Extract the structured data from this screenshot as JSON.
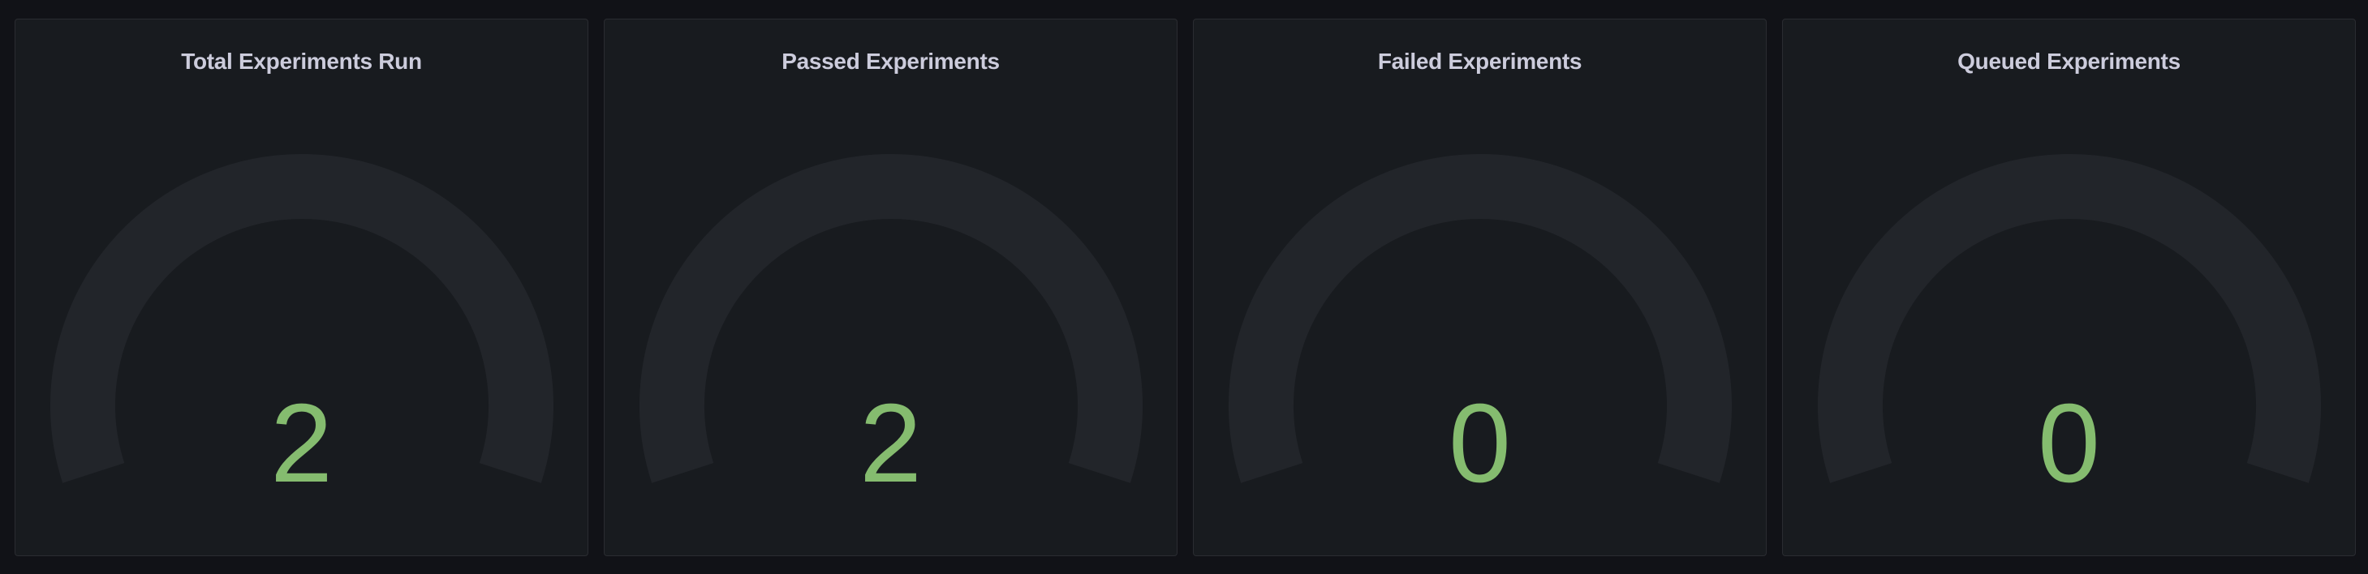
{
  "colors": {
    "value": "#85bc6f",
    "track": "#22252a"
  },
  "panels": [
    {
      "title": "Total Experiments Run",
      "value": "2"
    },
    {
      "title": "Passed Experiments",
      "value": "2"
    },
    {
      "title": "Failed Experiments",
      "value": "0"
    },
    {
      "title": "Queued Experiments",
      "value": "0"
    }
  ]
}
